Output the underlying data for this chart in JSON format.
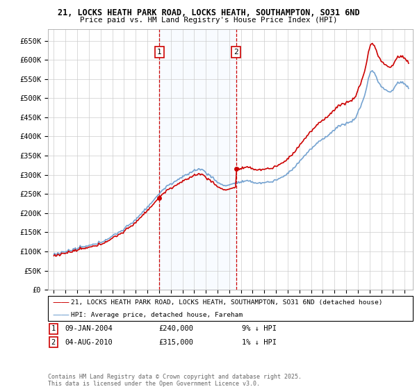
{
  "title_line1": "21, LOCKS HEATH PARK ROAD, LOCKS HEATH, SOUTHAMPTON, SO31 6ND",
  "title_line2": "Price paid vs. HM Land Registry's House Price Index (HPI)",
  "ylim": [
    0,
    680000
  ],
  "yticks": [
    0,
    50000,
    100000,
    150000,
    200000,
    250000,
    300000,
    350000,
    400000,
    450000,
    500000,
    550000,
    600000,
    650000
  ],
  "ytick_labels": [
    "£0",
    "£50K",
    "£100K",
    "£150K",
    "£200K",
    "£250K",
    "£300K",
    "£350K",
    "£400K",
    "£450K",
    "£500K",
    "£550K",
    "£600K",
    "£650K"
  ],
  "xlim_start": 1994.5,
  "xlim_end": 2025.7,
  "xticks": [
    1995,
    1996,
    1997,
    1998,
    1999,
    2000,
    2001,
    2002,
    2003,
    2004,
    2005,
    2006,
    2007,
    2008,
    2009,
    2010,
    2011,
    2012,
    2013,
    2014,
    2015,
    2016,
    2017,
    2018,
    2019,
    2020,
    2021,
    2022,
    2023,
    2024,
    2025
  ],
  "hpi_color": "#6699cc",
  "price_color": "#cc0000",
  "sale1_date": 2004.03,
  "sale1_price": 240000,
  "sale2_date": 2010.58,
  "sale2_price": 315000,
  "legend_label1": "21, LOCKS HEATH PARK ROAD, LOCKS HEATH, SOUTHAMPTON, SO31 6ND (detached house)",
  "legend_label2": "HPI: Average price, detached house, Fareham",
  "bg_color": "#ffffff",
  "grid_color": "#cccccc",
  "shade_color": "#ddeeff",
  "footnote": "Contains HM Land Registry data © Crown copyright and database right 2025.\nThis data is licensed under the Open Government Licence v3.0."
}
